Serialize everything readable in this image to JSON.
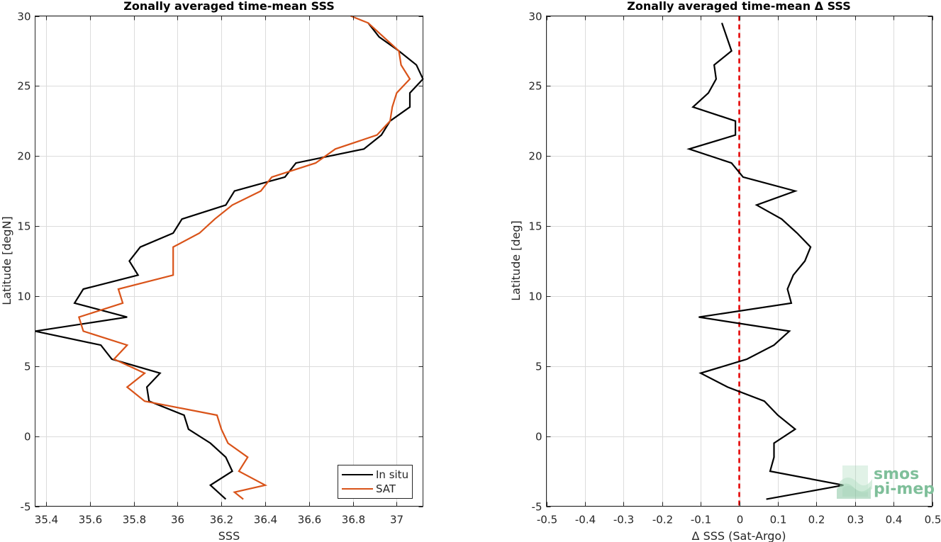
{
  "chart_data": [
    {
      "type": "line",
      "title": "Zonally averaged time-mean SSS",
      "xlabel": "SSS",
      "ylabel": "Latitude [degN]",
      "xlim": [
        35.35,
        37.12
      ],
      "ylim": [
        -5,
        30
      ],
      "xticks": [
        "35.4",
        "35.6",
        "35.8",
        "36",
        "36.2",
        "36.4",
        "36.6",
        "36.8",
        "37"
      ],
      "xtick_values": [
        35.4,
        35.6,
        35.8,
        36.0,
        36.2,
        36.4,
        36.6,
        36.8,
        37.0
      ],
      "yticks": [
        "-5",
        "0",
        "5",
        "10",
        "15",
        "20",
        "25",
        "30"
      ],
      "ytick_values": [
        -5,
        0,
        5,
        10,
        15,
        20,
        25,
        30
      ],
      "grid": true,
      "legend": "bottom-right",
      "series": [
        {
          "name": "In situ",
          "color": "#000000",
          "points": [
            [
              36.22,
              -4.5
            ],
            [
              36.15,
              -3.5
            ],
            [
              36.25,
              -2.5
            ],
            [
              36.22,
              -1.5
            ],
            [
              36.15,
              -0.5
            ],
            [
              36.05,
              0.5
            ],
            [
              36.03,
              1.5
            ],
            [
              35.87,
              2.5
            ],
            [
              35.86,
              3.5
            ],
            [
              35.92,
              4.5
            ],
            [
              35.7,
              5.5
            ],
            [
              35.65,
              6.5
            ],
            [
              35.35,
              7.5
            ],
            [
              35.77,
              8.5
            ],
            [
              35.53,
              9.5
            ],
            [
              35.57,
              10.5
            ],
            [
              35.82,
              11.5
            ],
            [
              35.78,
              12.5
            ],
            [
              35.83,
              13.5
            ],
            [
              35.98,
              14.5
            ],
            [
              36.02,
              15.5
            ],
            [
              36.22,
              16.5
            ],
            [
              36.26,
              17.5
            ],
            [
              36.49,
              18.5
            ],
            [
              36.54,
              19.5
            ],
            [
              36.85,
              20.5
            ],
            [
              36.93,
              21.5
            ],
            [
              36.97,
              22.5
            ],
            [
              37.06,
              23.5
            ],
            [
              37.06,
              24.5
            ],
            [
              37.12,
              25.5
            ],
            [
              37.09,
              26.5
            ],
            [
              37.01,
              27.5
            ],
            [
              36.92,
              28.5
            ],
            [
              36.87,
              29.5
            ]
          ]
        },
        {
          "name": "SAT",
          "color": "#d95319",
          "points": [
            [
              36.3,
              -4.5
            ],
            [
              36.26,
              -4.0
            ],
            [
              36.4,
              -3.5
            ],
            [
              36.28,
              -2.5
            ],
            [
              36.32,
              -1.5
            ],
            [
              36.23,
              -0.5
            ],
            [
              36.2,
              0.5
            ],
            [
              36.18,
              1.5
            ],
            [
              35.85,
              2.5
            ],
            [
              35.77,
              3.5
            ],
            [
              35.85,
              4.5
            ],
            [
              35.71,
              5.5
            ],
            [
              35.77,
              6.5
            ],
            [
              35.57,
              7.5
            ],
            [
              35.55,
              8.5
            ],
            [
              35.75,
              9.5
            ],
            [
              35.73,
              10.5
            ],
            [
              35.98,
              11.5
            ],
            [
              35.98,
              12.5
            ],
            [
              35.98,
              13.5
            ],
            [
              36.1,
              14.5
            ],
            [
              36.17,
              15.5
            ],
            [
              36.25,
              16.5
            ],
            [
              36.38,
              17.5
            ],
            [
              36.43,
              18.5
            ],
            [
              36.63,
              19.5
            ],
            [
              36.72,
              20.5
            ],
            [
              36.91,
              21.5
            ],
            [
              36.97,
              22.5
            ],
            [
              36.98,
              23.5
            ],
            [
              37.0,
              24.5
            ],
            [
              37.06,
              25.5
            ],
            [
              37.02,
              26.5
            ],
            [
              37.01,
              27.5
            ],
            [
              36.87,
              29.5
            ],
            [
              36.79,
              30.0
            ]
          ]
        }
      ]
    },
    {
      "type": "line",
      "title": "Zonally averaged time-mean Δ SSS",
      "xlabel": "Δ SSS (Sat-Argo)",
      "ylabel": "Latitude [deg]",
      "xlim": [
        -0.5,
        0.5
      ],
      "ylim": [
        -5,
        30
      ],
      "xticks": [
        "-0.5",
        "-0.4",
        "-0.3",
        "-0.2",
        "-0.1",
        "0",
        "0.1",
        "0.2",
        "0.3",
        "0.4",
        "0.5"
      ],
      "xtick_values": [
        -0.5,
        -0.4,
        -0.3,
        -0.2,
        -0.1,
        0.0,
        0.1,
        0.2,
        0.3,
        0.4,
        0.5
      ],
      "yticks": [
        "-5",
        "0",
        "5",
        "10",
        "15",
        "20",
        "25",
        "30"
      ],
      "ytick_values": [
        -5,
        0,
        5,
        10,
        15,
        20,
        25,
        30
      ],
      "grid": true,
      "reference_line": {
        "x": 0,
        "color": "#e60000",
        "style": "dashed"
      },
      "series": [
        {
          "name": "",
          "color": "#000000",
          "points": [
            [
              0.07,
              -4.5
            ],
            [
              0.27,
              -3.5
            ],
            [
              0.08,
              -2.5
            ],
            [
              0.09,
              -1.5
            ],
            [
              0.09,
              -0.5
            ],
            [
              0.145,
              0.5
            ],
            [
              0.1,
              1.5
            ],
            [
              0.065,
              2.5
            ],
            [
              -0.03,
              3.5
            ],
            [
              -0.1,
              4.5
            ],
            [
              0.02,
              5.5
            ],
            [
              0.09,
              6.5
            ],
            [
              0.13,
              7.5
            ],
            [
              -0.105,
              8.5
            ],
            [
              0.135,
              9.5
            ],
            [
              0.125,
              10.5
            ],
            [
              0.14,
              11.5
            ],
            [
              0.17,
              12.5
            ],
            [
              0.185,
              13.5
            ],
            [
              0.15,
              14.5
            ],
            [
              0.11,
              15.5
            ],
            [
              0.045,
              16.5
            ],
            [
              0.145,
              17.5
            ],
            [
              0.01,
              18.5
            ],
            [
              -0.02,
              19.5
            ],
            [
              -0.13,
              20.5
            ],
            [
              -0.01,
              21.5
            ],
            [
              -0.01,
              22.5
            ],
            [
              -0.12,
              23.5
            ],
            [
              -0.08,
              24.5
            ],
            [
              -0.06,
              25.5
            ],
            [
              -0.065,
              26.5
            ],
            [
              -0.02,
              27.5
            ],
            [
              -0.045,
              29.5
            ]
          ]
        }
      ]
    }
  ],
  "logo": {
    "line1": "smos",
    "line2": "pi-mep",
    "color": "#7fbf9a"
  }
}
